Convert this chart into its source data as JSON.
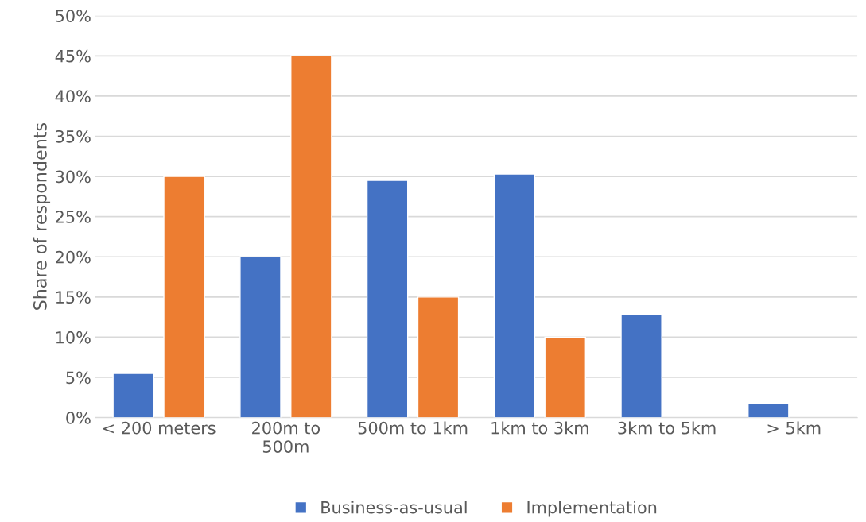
{
  "chart_data": {
    "type": "bar",
    "ylabel": "Share of respondents",
    "categories": [
      "< 200 meters",
      "200m to\n500m",
      "500m to 1km",
      "1km to 3km",
      "3km to 5km",
      "> 5km"
    ],
    "series": [
      {
        "name": "Business-as-usual",
        "color": "#4472c4",
        "values": [
          5.5,
          20,
          29.5,
          30.3,
          12.8,
          1.7
        ]
      },
      {
        "name": "Implementation",
        "color": "#ed7d31",
        "values": [
          30,
          45,
          15,
          10,
          null,
          null
        ]
      }
    ],
    "ylim": [
      0,
      50
    ],
    "yticks": [
      {
        "value": 0,
        "label": "0%"
      },
      {
        "value": 5,
        "label": "5%"
      },
      {
        "value": 10,
        "label": "10%"
      },
      {
        "value": 15,
        "label": "15%"
      },
      {
        "value": 20,
        "label": "20%"
      },
      {
        "value": 25,
        "label": "25%"
      },
      {
        "value": 30,
        "label": "30%"
      },
      {
        "value": 35,
        "label": "35%"
      },
      {
        "value": 40,
        "label": "40%"
      },
      {
        "value": 45,
        "label": "45%"
      },
      {
        "value": 50,
        "label": "50%"
      }
    ],
    "grid": "y",
    "legend": "bottom"
  }
}
